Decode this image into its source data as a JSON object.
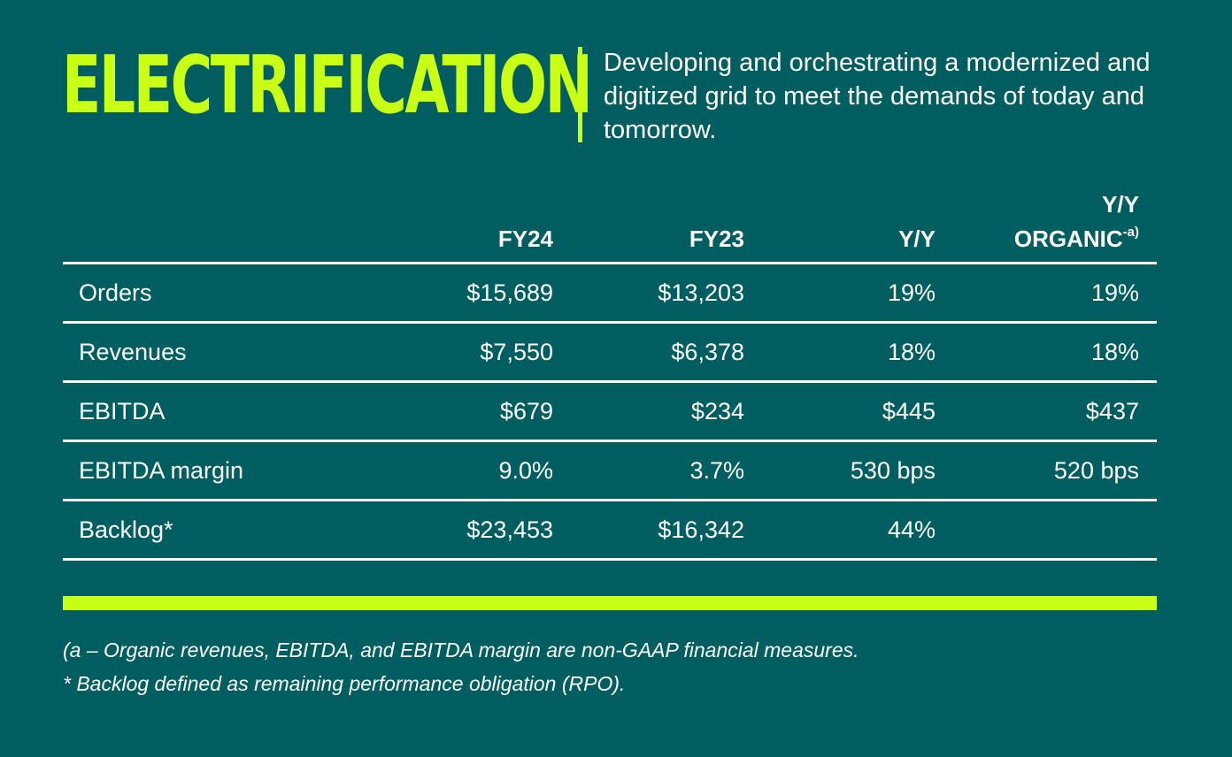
{
  "header": {
    "title": "ELECTRIFICATION",
    "tagline": "Developing and orchestrating a modernized and digitized grid to meet the demands of today and tomorrow."
  },
  "table": {
    "columns": {
      "fy24": "FY24",
      "fy23": "FY23",
      "yy": "Y/Y",
      "organic_line1": "Y/Y",
      "organic_line2": "ORGANIC",
      "organic_sup": "-a)"
    },
    "rows": [
      {
        "label": "Orders",
        "fy24": "$15,689",
        "fy23": "$13,203",
        "yy": "19%",
        "organic": "19%"
      },
      {
        "label": "Revenues",
        "fy24": "$7,550",
        "fy23": "$6,378",
        "yy": "18%",
        "organic": "18%"
      },
      {
        "label": "EBITDA",
        "fy24": "$679",
        "fy23": "$234",
        "yy": "$445",
        "organic": "$437"
      },
      {
        "label": "EBITDA margin",
        "fy24": "9.0%",
        "fy23": "3.7%",
        "yy": "530 bps",
        "organic": "520 bps"
      },
      {
        "label": "Backlog*",
        "fy24": "$23,453",
        "fy23": "$16,342",
        "yy": "44%",
        "organic": ""
      }
    ]
  },
  "footnotes": {
    "note_a": "(a – Organic revenues, EBITDA, and EBITDA margin are non-GAAP financial measures.",
    "note_backlog": "* Backlog defined as remaining performance obligation (RPO)."
  },
  "colors": {
    "background": "#005e60",
    "accent": "#c8ff14",
    "text": "#ffffff"
  }
}
